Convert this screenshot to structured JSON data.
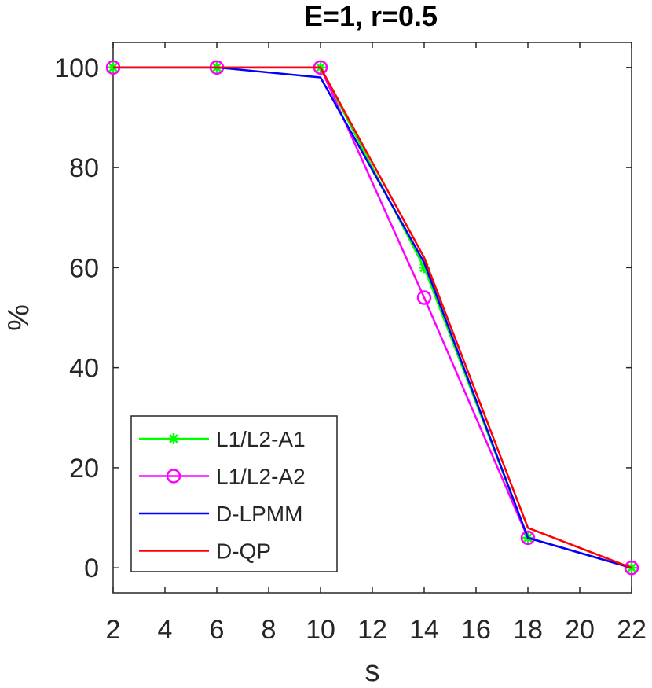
{
  "chart_data": {
    "type": "line",
    "title": "E=1, r=0.5",
    "xlabel": "s",
    "ylabel": "%",
    "xlim": [
      2,
      22
    ],
    "ylim": [
      -5,
      105
    ],
    "xticks": [
      2,
      4,
      6,
      8,
      10,
      12,
      14,
      16,
      18,
      20,
      22
    ],
    "yticks": [
      0,
      20,
      40,
      60,
      80,
      100
    ],
    "grid": false,
    "legend_position": "bottom-left",
    "x": [
      2,
      6,
      10,
      14,
      18,
      22
    ],
    "series": [
      {
        "name": "L1/L2-A1",
        "color": "#00ff00",
        "marker": "asterisk",
        "values": [
          100,
          100,
          100,
          60,
          6,
          0
        ]
      },
      {
        "name": "L1/L2-A2",
        "color": "#ff00ff",
        "marker": "circle",
        "values": [
          100,
          100,
          100,
          54,
          6,
          0
        ]
      },
      {
        "name": "D-LPMM",
        "color": "#0000ff",
        "marker": "none",
        "values": [
          100,
          100,
          98,
          61,
          6,
          0
        ]
      },
      {
        "name": "D-QP",
        "color": "#ff0000",
        "marker": "none",
        "values": [
          100,
          100,
          100,
          62,
          8,
          0
        ]
      }
    ]
  }
}
